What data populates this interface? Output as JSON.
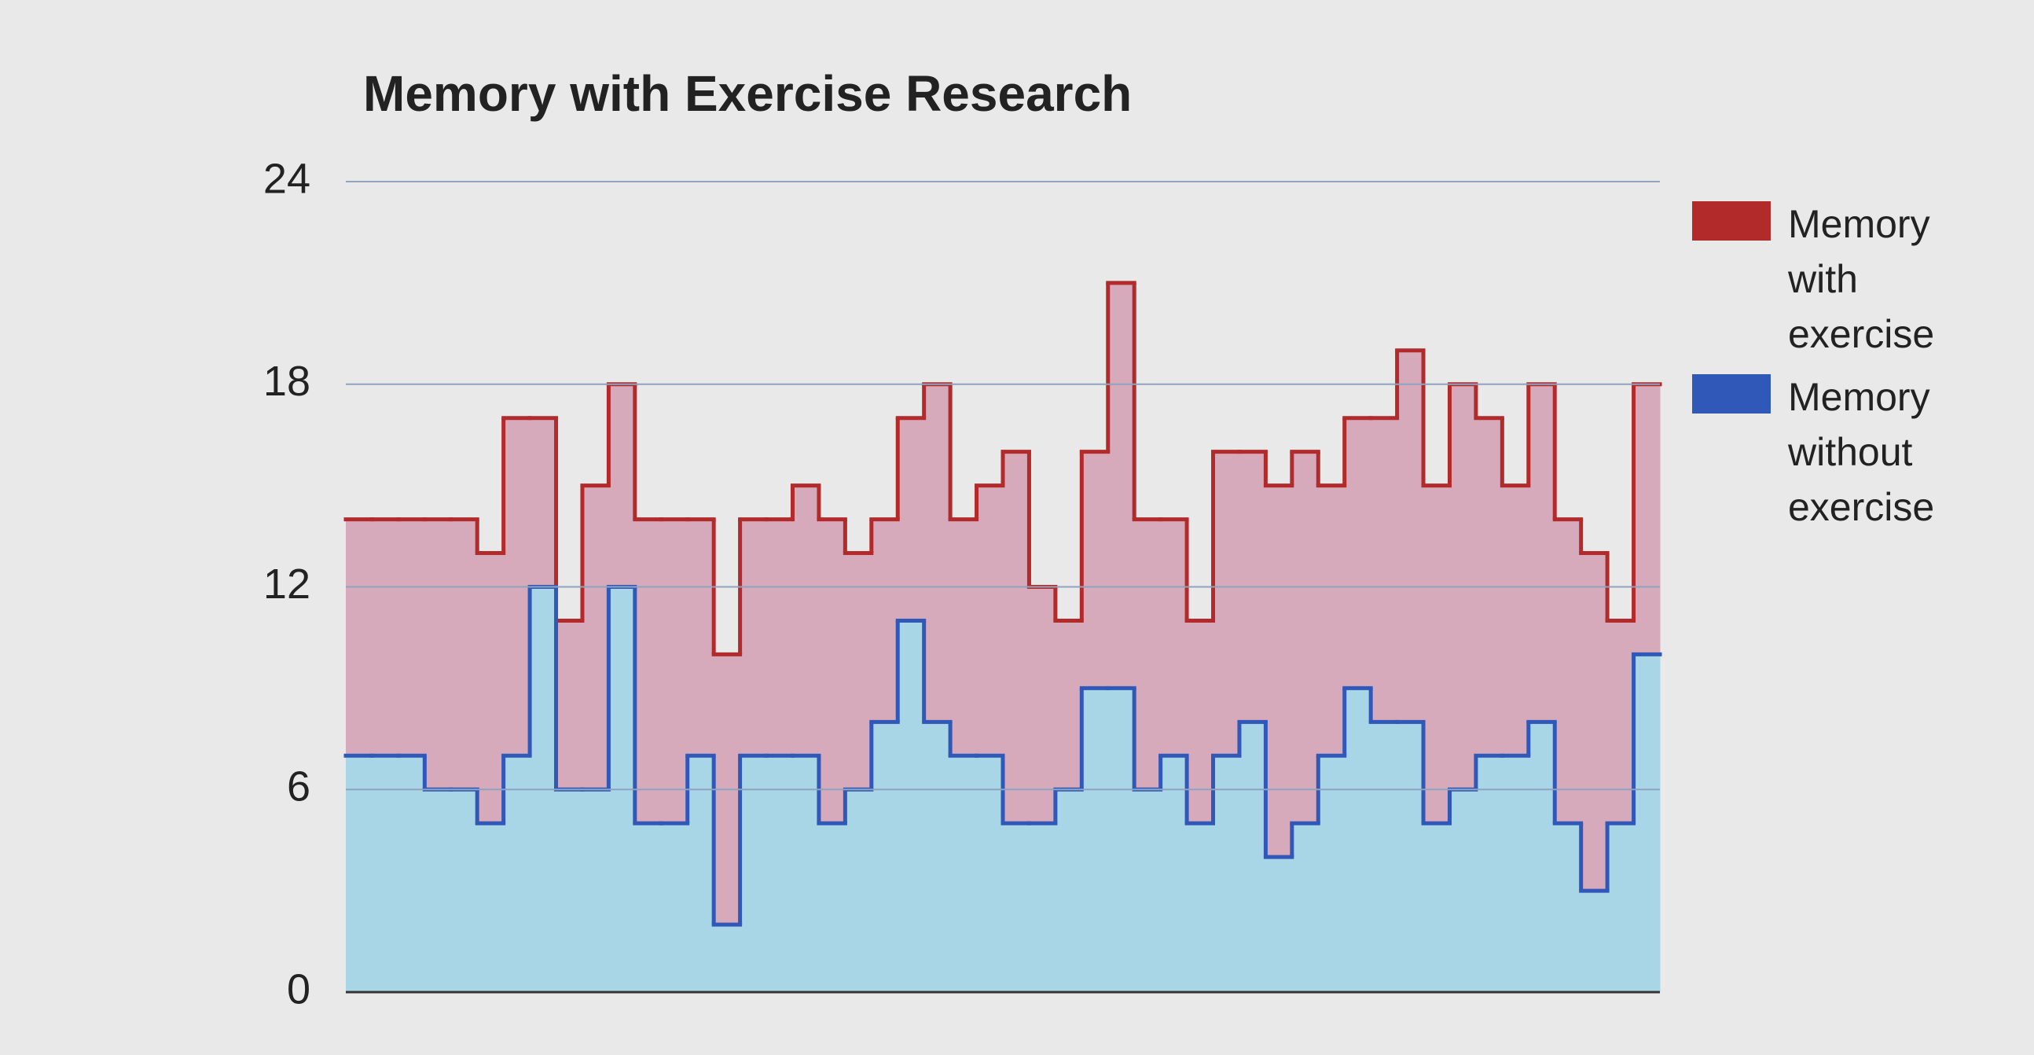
{
  "chart_data": {
    "type": "stepped-area",
    "title": "Memory with Exercise Research",
    "series": [
      {
        "name": "Memory with exercise",
        "color": "#b22a2a",
        "fill": "#d6a9bb",
        "values": [
          14,
          14,
          14,
          14,
          14,
          13,
          17,
          17,
          11,
          15,
          18,
          14,
          14,
          14,
          10,
          14,
          14,
          15,
          14,
          13,
          14,
          17,
          18,
          14,
          15,
          16,
          12,
          11,
          16,
          21,
          14,
          14,
          11,
          16,
          16,
          15,
          16,
          15,
          17,
          17,
          19,
          15,
          18,
          17,
          15,
          18,
          14,
          13,
          11,
          18
        ]
      },
      {
        "name": "Memory without exercise",
        "color": "#2f58b8",
        "fill": "#a9d6e6",
        "values": [
          7,
          7,
          7,
          6,
          6,
          5,
          7,
          12,
          6,
          6,
          12,
          5,
          5,
          7,
          2,
          7,
          7,
          7,
          5,
          6,
          8,
          11,
          8,
          7,
          7,
          5,
          5,
          6,
          9,
          9,
          6,
          7,
          5,
          7,
          8,
          4,
          5,
          7,
          9,
          8,
          8,
          5,
          6,
          7,
          7,
          8,
          5,
          3,
          5,
          10
        ]
      }
    ],
    "ylim": [
      0,
      24
    ],
    "yticks": [
      0,
      6,
      12,
      18,
      24
    ],
    "grid": true,
    "legend": "right"
  }
}
